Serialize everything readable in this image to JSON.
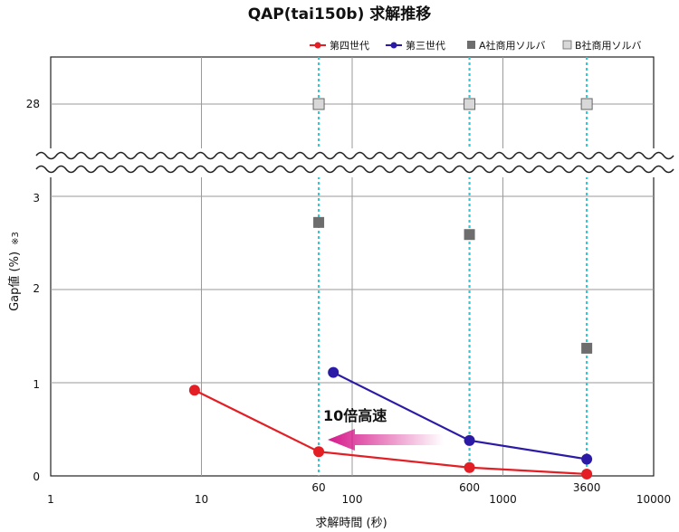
{
  "chart_data": {
    "type": "line",
    "title": "QAP(tai150b) 求解推移",
    "xlabel": "求解時間 (秒)",
    "ylabel": "Gap値 (%)",
    "ylabel_note": "※3",
    "x_scale": "log",
    "xlim": [
      1,
      10000
    ],
    "x_ticks": [
      "1",
      "10",
      "100",
      "1000",
      "10000"
    ],
    "x_markers": [
      "60",
      "600",
      "3600"
    ],
    "x_marker_values": [
      60,
      600,
      3600
    ],
    "y_ticks_lower": [
      "0",
      "1",
      "2",
      "3"
    ],
    "y_tick_upper": "28",
    "axis_break": "between 3 and 28",
    "grid": true,
    "legend_position": "top-right",
    "series": [
      {
        "name": "第四世代",
        "style": "line",
        "color": "#e31e24",
        "x": [
          9,
          60,
          600,
          3600
        ],
        "y": [
          0.92,
          0.26,
          0.09,
          0.02
        ]
      },
      {
        "name": "第三世代",
        "style": "line",
        "color": "#2a1aa6",
        "x": [
          75,
          600,
          3600
        ],
        "y": [
          1.11,
          0.38,
          0.18
        ]
      },
      {
        "name": "A社商用ソルバ",
        "style": "marker",
        "color": "#6d6d6d",
        "x": [
          60,
          600,
          3600
        ],
        "y": [
          2.72,
          2.59,
          1.37
        ]
      },
      {
        "name": "B社商用ソルバ",
        "style": "marker",
        "color": "#d8d8d8",
        "x": [
          60,
          600,
          3600
        ],
        "y": [
          28,
          28,
          28
        ]
      }
    ],
    "annotation": {
      "text": "10倍高速",
      "arrow_color": "#d6188a"
    }
  }
}
